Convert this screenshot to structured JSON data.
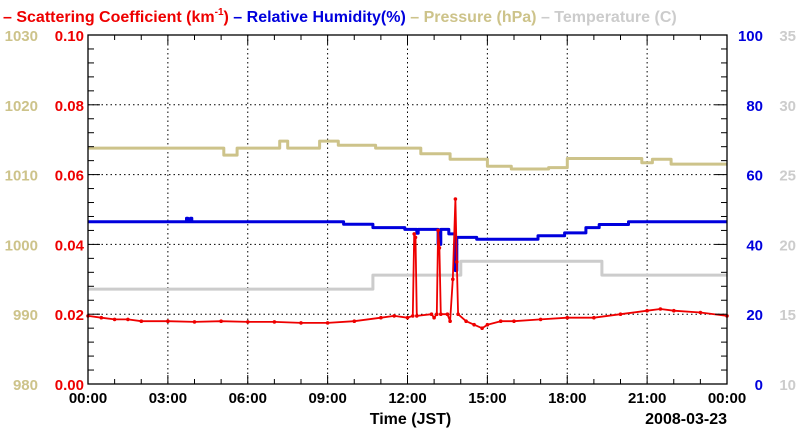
{
  "chart_data": {
    "type": "line",
    "legend": [
      {
        "key": "scat",
        "dash": "–",
        "label": "Scattering Coefficient (km",
        "sup": "-1",
        "close": ")",
        "color": "#ee0000"
      },
      {
        "key": "rh",
        "dash": "–",
        "label": "Relative Humidity(%)",
        "color": "#0000dd"
      },
      {
        "key": "pres",
        "dash": "–",
        "label": "Pressure (hPa)",
        "color": "#cdc38a"
      },
      {
        "key": "temp",
        "dash": "–",
        "label": "Temperature (C)",
        "color": "#cccccc"
      }
    ],
    "xlabel": "Time (JST)",
    "date_label": "2008-03-23",
    "xlim": [
      0,
      24
    ],
    "x_ticks": [
      {
        "v": 0,
        "label": "00:00"
      },
      {
        "v": 3,
        "label": "03:00"
      },
      {
        "v": 6,
        "label": "06:00"
      },
      {
        "v": 9,
        "label": "09:00"
      },
      {
        "v": 12,
        "label": "12:00"
      },
      {
        "v": 15,
        "label": "15:00"
      },
      {
        "v": 18,
        "label": "18:00"
      },
      {
        "v": 21,
        "label": "21:00"
      },
      {
        "v": 24,
        "label": "00:00"
      }
    ],
    "axes": {
      "pressure": {
        "ylim": [
          980,
          1030
        ],
        "ticks": [
          "980",
          "990",
          "1000",
          "1010",
          "1020",
          "1030"
        ],
        "color": "#cdc38a"
      },
      "scattering": {
        "ylim": [
          0,
          0.1
        ],
        "ticks": [
          "0.00",
          "0.02",
          "0.04",
          "0.06",
          "0.08",
          "0.10"
        ],
        "color": "#ee0000"
      },
      "humidity": {
        "ylim": [
          0,
          100
        ],
        "ticks": [
          "0",
          "20",
          "40",
          "60",
          "80",
          "100"
        ],
        "color": "#0000dd"
      },
      "temperature": {
        "ylim": [
          10,
          35
        ],
        "ticks": [
          "10",
          "15",
          "20",
          "25",
          "30",
          "35"
        ],
        "color": "#cccccc"
      }
    },
    "series": [
      {
        "name": "Pressure (hPa)",
        "axis": "pressure",
        "color": "#cdc38a",
        "style": "step",
        "points": [
          [
            0,
            1013.8
          ],
          [
            5.1,
            1012.8
          ],
          [
            5.6,
            1013.8
          ],
          [
            7.2,
            1014.8
          ],
          [
            7.5,
            1013.8
          ],
          [
            8.7,
            1014.8
          ],
          [
            9.4,
            1014.2
          ],
          [
            10.8,
            1013.8
          ],
          [
            12.5,
            1013.0
          ],
          [
            13.6,
            1012.2
          ],
          [
            15.0,
            1011.2
          ],
          [
            15.9,
            1010.8
          ],
          [
            17.3,
            1011.0
          ],
          [
            18.0,
            1012.3
          ],
          [
            20.8,
            1011.7
          ],
          [
            21.2,
            1012.2
          ],
          [
            21.9,
            1011.5
          ],
          [
            24,
            1011.5
          ]
        ]
      },
      {
        "name": "Temperature (C)",
        "axis": "temperature",
        "color": "#cccccc",
        "style": "step",
        "points": [
          [
            0,
            16.8
          ],
          [
            10.6,
            16.8
          ],
          [
            10.7,
            17.8
          ],
          [
            13.9,
            17.8
          ],
          [
            14.0,
            18.8
          ],
          [
            19.2,
            18.8
          ],
          [
            19.3,
            17.8
          ],
          [
            24,
            17.8
          ]
        ]
      },
      {
        "name": "Relative Humidity(%)",
        "axis": "humidity",
        "color": "#0000dd",
        "style": "step",
        "points": [
          [
            0,
            46.5
          ],
          [
            3.6,
            46.5
          ],
          [
            3.7,
            47.5
          ],
          [
            3.75,
            46.5
          ],
          [
            3.85,
            47.5
          ],
          [
            3.9,
            46.5
          ],
          [
            9.5,
            46.5
          ],
          [
            9.6,
            45.8
          ],
          [
            10.6,
            45.8
          ],
          [
            10.7,
            44.8
          ],
          [
            11.8,
            44.8
          ],
          [
            11.9,
            44.3
          ],
          [
            12.3,
            44.3
          ],
          [
            12.35,
            43.2
          ],
          [
            12.4,
            44.3
          ],
          [
            13.1,
            44.3
          ],
          [
            13.15,
            40.0
          ],
          [
            13.25,
            44.3
          ],
          [
            13.5,
            44.3
          ],
          [
            13.55,
            43.0
          ],
          [
            13.75,
            43.0
          ],
          [
            13.8,
            32.5
          ],
          [
            13.85,
            42.0
          ],
          [
            14.5,
            42.0
          ],
          [
            14.6,
            41.5
          ],
          [
            16.8,
            41.5
          ],
          [
            16.9,
            42.5
          ],
          [
            17.8,
            42.5
          ],
          [
            17.9,
            43.3
          ],
          [
            18.6,
            43.3
          ],
          [
            18.7,
            44.8
          ],
          [
            19.1,
            44.8
          ],
          [
            19.2,
            45.7
          ],
          [
            20.2,
            45.7
          ],
          [
            20.3,
            46.5
          ],
          [
            24,
            46.5
          ]
        ]
      },
      {
        "name": "Scattering Coefficient (km-1)",
        "axis": "scattering",
        "color": "#ee0000",
        "style": "line",
        "points": [
          [
            0,
            0.0195
          ],
          [
            0.5,
            0.019
          ],
          [
            1,
            0.0185
          ],
          [
            1.5,
            0.0185
          ],
          [
            2,
            0.018
          ],
          [
            3,
            0.018
          ],
          [
            4,
            0.0178
          ],
          [
            5,
            0.018
          ],
          [
            6,
            0.0178
          ],
          [
            7,
            0.0178
          ],
          [
            8,
            0.0175
          ],
          [
            9,
            0.0175
          ],
          [
            10,
            0.018
          ],
          [
            11,
            0.019
          ],
          [
            11.5,
            0.0195
          ],
          [
            12.0,
            0.019
          ],
          [
            12.2,
            0.0195
          ],
          [
            12.25,
            0.043
          ],
          [
            12.3,
            0.042
          ],
          [
            12.35,
            0.0195
          ],
          [
            12.9,
            0.02
          ],
          [
            13.0,
            0.019
          ],
          [
            13.1,
            0.02
          ],
          [
            13.15,
            0.044
          ],
          [
            13.2,
            0.039
          ],
          [
            13.25,
            0.02
          ],
          [
            13.5,
            0.02
          ],
          [
            13.6,
            0.018
          ],
          [
            13.7,
            0.03
          ],
          [
            13.8,
            0.053
          ],
          [
            13.85,
            0.035
          ],
          [
            13.9,
            0.02
          ],
          [
            14.2,
            0.018
          ],
          [
            14.5,
            0.017
          ],
          [
            14.8,
            0.016
          ],
          [
            15.0,
            0.017
          ],
          [
            15.5,
            0.018
          ],
          [
            16,
            0.018
          ],
          [
            17,
            0.0185
          ],
          [
            18,
            0.019
          ],
          [
            19,
            0.019
          ],
          [
            20,
            0.02
          ],
          [
            21,
            0.021
          ],
          [
            21.5,
            0.0215
          ],
          [
            22,
            0.021
          ],
          [
            23,
            0.0205
          ],
          [
            24,
            0.0195
          ]
        ]
      }
    ]
  }
}
